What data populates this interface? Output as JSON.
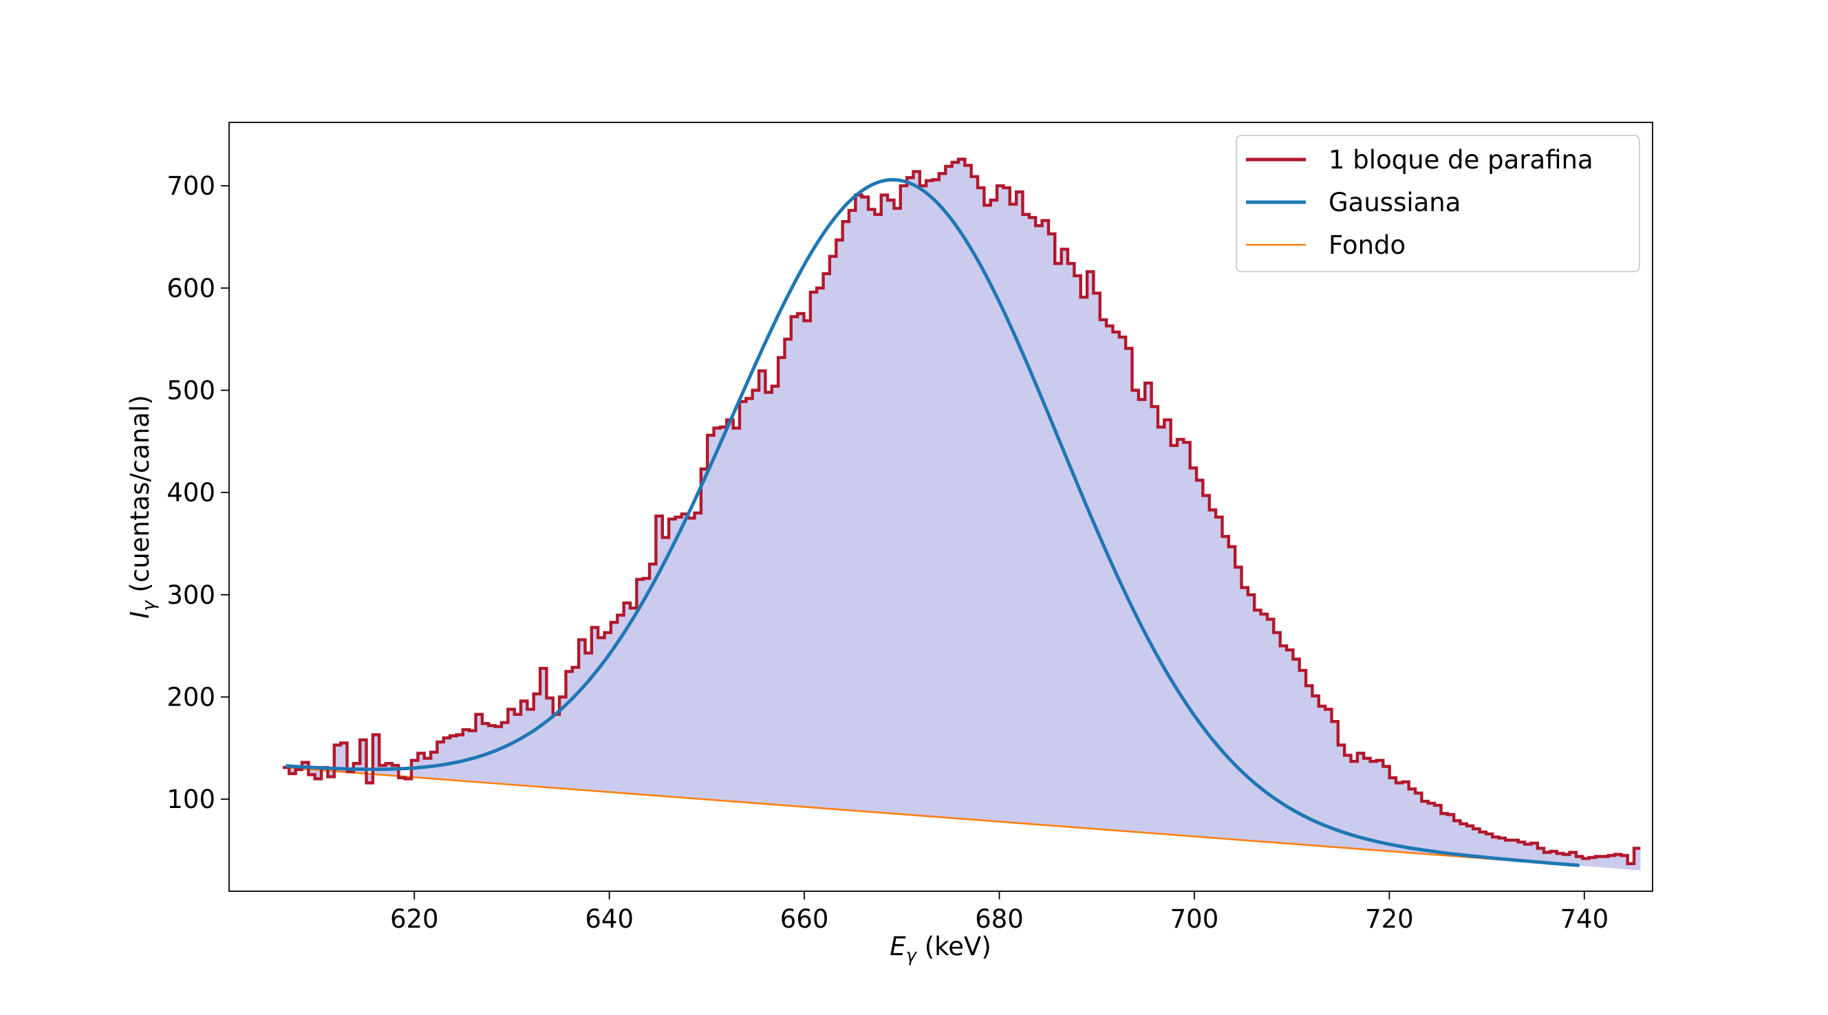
{
  "chart_data": {
    "type": "line",
    "xlabel": {
      "main": "E",
      "sub": "γ",
      "unit": " (keV)"
    },
    "ylabel": {
      "main": "I",
      "sub": "γ",
      "unit": " (cuentas/canal)"
    },
    "xlim": [
      601,
      747
    ],
    "ylim": [
      10,
      762
    ],
    "xticks": [
      620,
      640,
      660,
      680,
      700,
      720,
      740
    ],
    "yticks": [
      100,
      200,
      300,
      400,
      500,
      600,
      700
    ],
    "legend_position": "upper right",
    "colors": {
      "histogram": "#b2182b",
      "gaussian": "#1f77b4",
      "background": "#ff7f0e",
      "fill": "#cbcbee"
    },
    "series": [
      {
        "name": "1 bloque de parafina",
        "style": "steps",
        "bin_start": 606.5,
        "bin_width": 0.66,
        "values": [
          131,
          125,
          129,
          136,
          124,
          120,
          131,
          122,
          153,
          155,
          127,
          135,
          158,
          116,
          163,
          133,
          135,
          133,
          121,
          120,
          138,
          145,
          140,
          146,
          156,
          160,
          162,
          163,
          168,
          167,
          183,
          174,
          172,
          171,
          175,
          188,
          183,
          196,
          188,
          203,
          228,
          199,
          183,
          200,
          225,
          229,
          256,
          243,
          268,
          258,
          263,
          273,
          280,
          292,
          287,
          315,
          316,
          330,
          377,
          356,
          374,
          376,
          379,
          375,
          380,
          423,
          456,
          463,
          464,
          471,
          463,
          489,
          492,
          500,
          519,
          498,
          504,
          532,
          550,
          572,
          575,
          568,
          596,
          600,
          614,
          631,
          647,
          665,
          676,
          691,
          689,
          677,
          672,
          691,
          686,
          678,
          700,
          708,
          714,
          700,
          705,
          706,
          712,
          719,
          723,
          726,
          720,
          709,
          698,
          681,
          686,
          700,
          698,
          682,
          694,
          672,
          669,
          661,
          666,
          653,
          624,
          638,
          624,
          612,
          591,
          616,
          595,
          569,
          563,
          557,
          552,
          541,
          500,
          491,
          507,
          484,
          464,
          471,
          446,
          452,
          449,
          424,
          412,
          397,
          383,
          376,
          357,
          347,
          327,
          307,
          300,
          285,
          281,
          276,
          263,
          250,
          246,
          237,
          226,
          211,
          201,
          191,
          188,
          176,
          153,
          143,
          137,
          145,
          140,
          137,
          138,
          132,
          121,
          116,
          117,
          110,
          106,
          98,
          96,
          94,
          86,
          85,
          79,
          76,
          74,
          71,
          68,
          66,
          63,
          62,
          60,
          60,
          58,
          56,
          57,
          52,
          48,
          49,
          47,
          46,
          48,
          44,
          42,
          43,
          44,
          44,
          45,
          46,
          45,
          37,
          52
        ]
      },
      {
        "name": "Gaussiana",
        "style": "line",
        "model": {
          "amplitude": 619.5,
          "mean": 669.4,
          "sigma": 16.8,
          "bg_intercept": 132.0,
          "bg_slope": -0.73,
          "x_start": 606.8,
          "x_end": 739.5
        }
      },
      {
        "name": "Fondo",
        "style": "line",
        "points": [
          [
            606.8,
            131.0
          ],
          [
            739.5,
            35.0
          ]
        ]
      }
    ]
  }
}
